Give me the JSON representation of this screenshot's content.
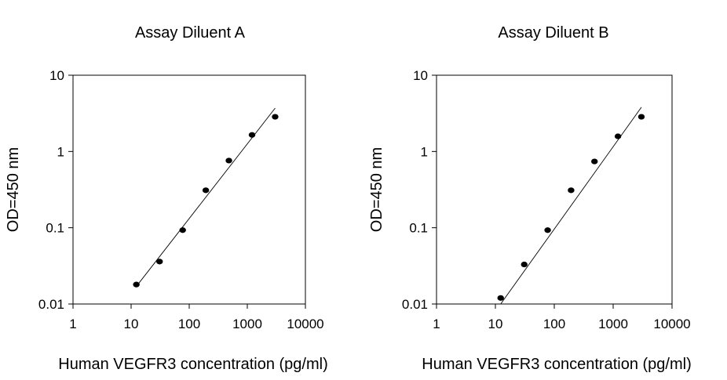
{
  "chart_data": [
    {
      "type": "scatter",
      "title": "Assay Diluent A",
      "xlabel": "Human VEGFR3 concentration (pg/ml)",
      "ylabel": "OD=450 nm",
      "x_scale": "log",
      "y_scale": "log",
      "xlim": [
        1,
        10000
      ],
      "ylim": [
        0.01,
        10
      ],
      "x_ticks": [
        "1",
        "10",
        "100",
        "1000",
        "10000"
      ],
      "y_ticks": [
        "0.01",
        "0.1",
        "1",
        "10"
      ],
      "grid": false,
      "series": [
        {
          "x": [
            12.3,
            30.9,
            77.2,
            193,
            482,
            1206,
            3016
          ],
          "y": [
            0.018,
            0.036,
            0.093,
            0.31,
            0.76,
            1.65,
            2.85
          ]
        }
      ],
      "fit_line": {
        "x": [
          12.3,
          3016
        ],
        "y": [
          0.017,
          3.7
        ]
      }
    },
    {
      "type": "scatter",
      "title": "Assay Diluent B",
      "xlabel": "Human VEGFR3 concentration (pg/ml)",
      "ylabel": "OD=450 nm",
      "x_scale": "log",
      "y_scale": "log",
      "xlim": [
        1,
        10000
      ],
      "ylim": [
        0.01,
        10
      ],
      "x_ticks": [
        "1",
        "10",
        "100",
        "1000",
        "10000"
      ],
      "y_ticks": [
        "0.01",
        "0.1",
        "1",
        "10"
      ],
      "grid": false,
      "series": [
        {
          "x": [
            12.3,
            30.9,
            77.2,
            193,
            482,
            1206,
            3016
          ],
          "y": [
            0.012,
            0.033,
            0.093,
            0.31,
            0.74,
            1.58,
            2.85
          ]
        }
      ],
      "fit_line": {
        "x": [
          12.3,
          3016
        ],
        "y": [
          0.01,
          3.8
        ]
      }
    }
  ]
}
